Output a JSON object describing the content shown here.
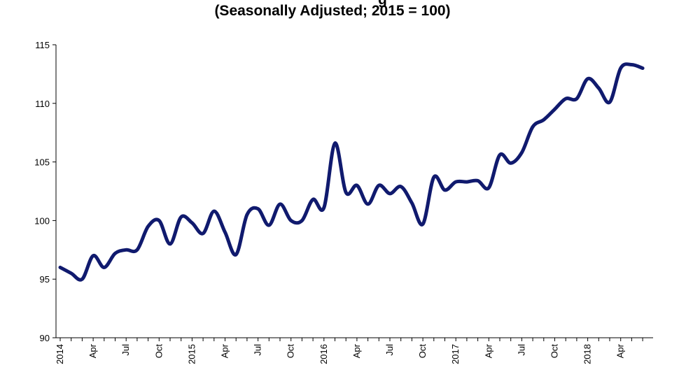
{
  "chart_data": {
    "type": "line",
    "title": "",
    "title_fragment": "g",
    "subtitle": "(Seasonally Adjusted; 2015 = 100)",
    "xlabel": "",
    "ylabel": "",
    "ylim": [
      90,
      115
    ],
    "yticks": [
      90,
      95,
      100,
      105,
      110,
      115
    ],
    "grid": false,
    "legend": "none",
    "line_color": "#101a6e",
    "x_tick_labels": [
      "2014",
      "Apr",
      "Jul",
      "Oct",
      "2015",
      "Apr",
      "Jul",
      "Oct",
      "2016",
      "Apr",
      "Jul",
      "Oct",
      "2017",
      "Apr",
      "Jul",
      "Oct",
      "2018",
      "Apr"
    ],
    "x": [
      "2014-01",
      "2014-02",
      "2014-03",
      "2014-04",
      "2014-05",
      "2014-06",
      "2014-07",
      "2014-08",
      "2014-09",
      "2014-10",
      "2014-11",
      "2014-12",
      "2015-01",
      "2015-02",
      "2015-03",
      "2015-04",
      "2015-05",
      "2015-06",
      "2015-07",
      "2015-08",
      "2015-09",
      "2015-10",
      "2015-11",
      "2015-12",
      "2016-01",
      "2016-02",
      "2016-03",
      "2016-04",
      "2016-05",
      "2016-06",
      "2016-07",
      "2016-08",
      "2016-09",
      "2016-10",
      "2016-11",
      "2016-12",
      "2017-01",
      "2017-02",
      "2017-03",
      "2017-04",
      "2017-05",
      "2017-06",
      "2017-07",
      "2017-08",
      "2017-09",
      "2017-10",
      "2017-11",
      "2017-12",
      "2018-01",
      "2018-02",
      "2018-03",
      "2018-04",
      "2018-05",
      "2018-06"
    ],
    "series": [
      {
        "name": "",
        "values": [
          96.0,
          95.5,
          95.0,
          97.0,
          96.0,
          97.2,
          97.5,
          97.5,
          99.5,
          100.0,
          98.0,
          100.3,
          99.8,
          98.9,
          100.8,
          99.0,
          97.1,
          100.5,
          101.0,
          99.6,
          101.4,
          100.0,
          100.0,
          101.8,
          101.1,
          106.6,
          102.4,
          103.0,
          101.4,
          103.0,
          102.3,
          102.9,
          101.5,
          99.7,
          103.7,
          102.6,
          103.3,
          103.3,
          103.4,
          102.8,
          105.6,
          104.9,
          105.8,
          108.0,
          108.6,
          109.5,
          110.4,
          110.4,
          112.1,
          111.3,
          110.1,
          113.0,
          113.3,
          113.0
        ]
      }
    ]
  }
}
